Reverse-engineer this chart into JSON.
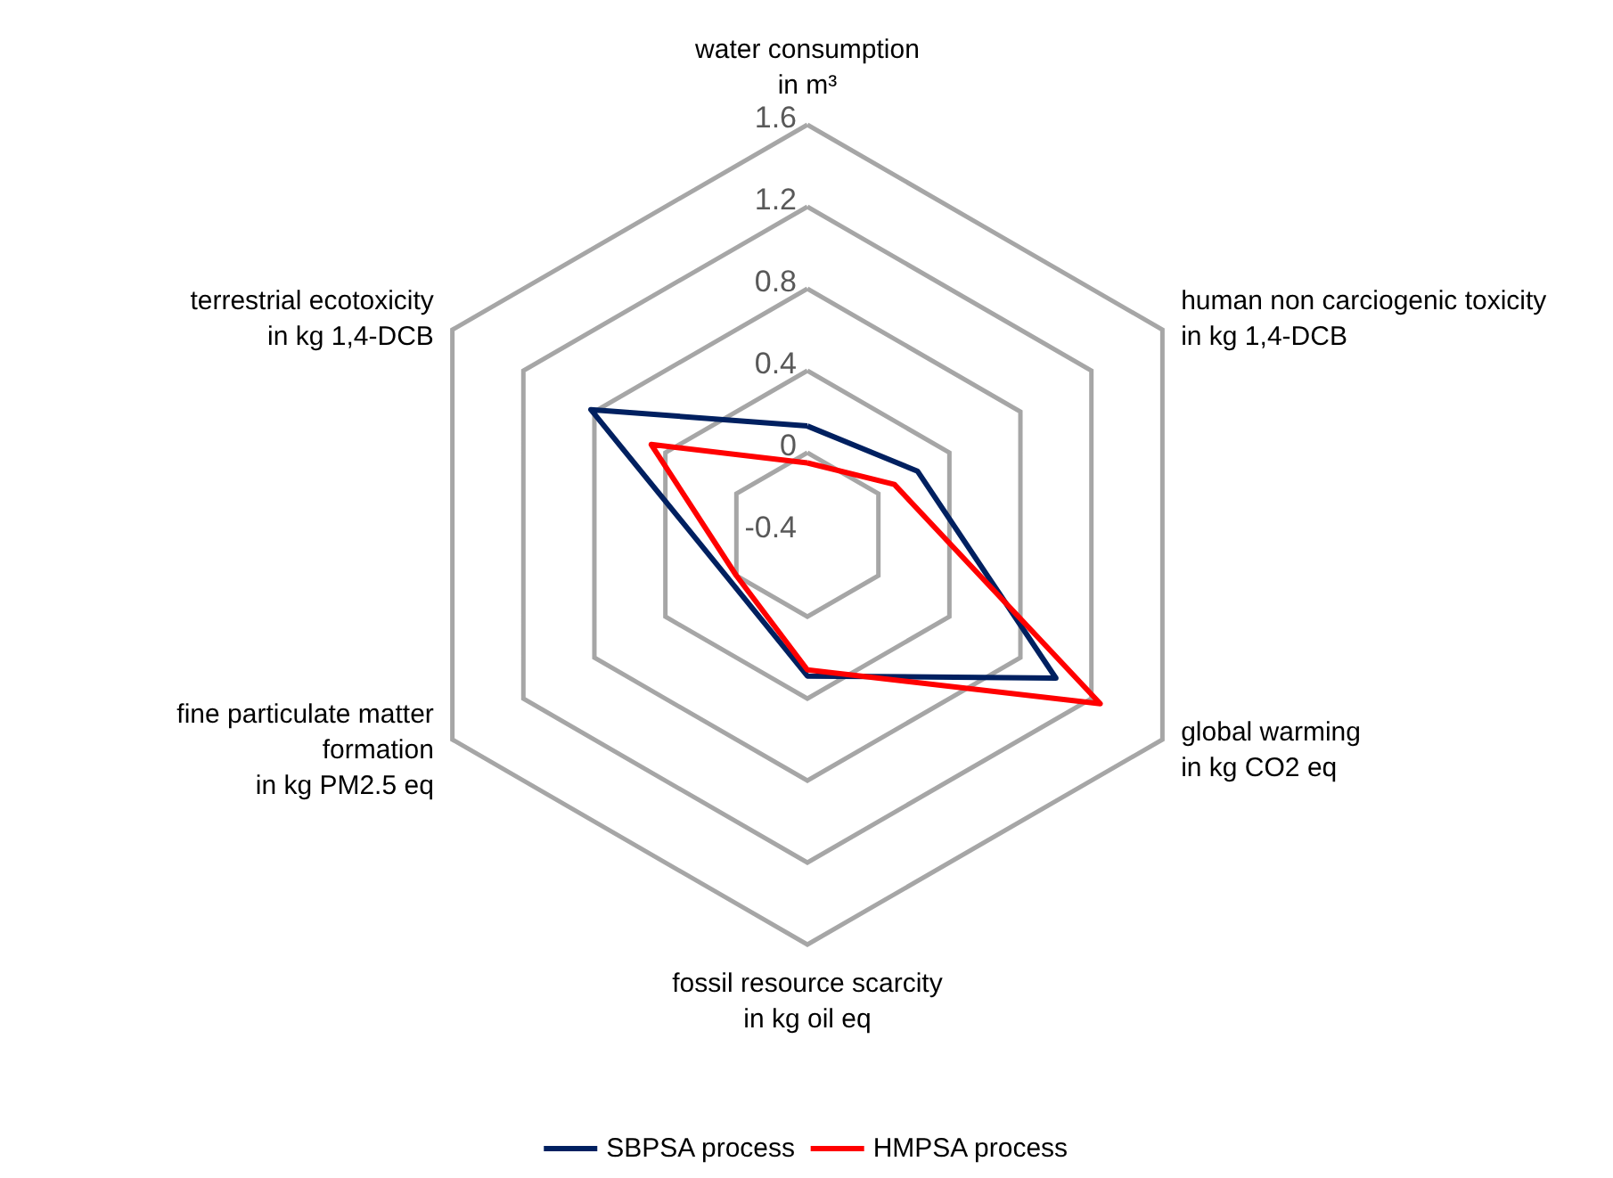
{
  "chart_data": {
    "type": "radar",
    "categories": [
      "water consumption\nin m³",
      "human non carciogenic toxicity\nin kg 1,4-DCB",
      "global warming\nin kg CO2 eq",
      "fossil resource scarcity\nin kg oil eq",
      "fine particulate matter\nformation\nin kg PM2.5 eq",
      "terrestrial ecotoxicity\nin kg 1,4-DCB"
    ],
    "series": [
      {
        "name": "SBPSA process",
        "color": "#002060",
        "values": [
          0.13,
          0.22,
          1.0,
          0.29,
          0.04,
          0.82
        ]
      },
      {
        "name": "HMPSA process",
        "color": "#ff0000",
        "values": [
          -0.05,
          0.09,
          1.25,
          0.26,
          0.0,
          0.48
        ]
      }
    ],
    "ylim": [
      -0.4,
      1.6
    ],
    "yticks": [
      -0.4,
      0,
      0.4,
      0.8,
      1.2,
      1.6
    ],
    "legend": "bottom",
    "marker": "none"
  }
}
